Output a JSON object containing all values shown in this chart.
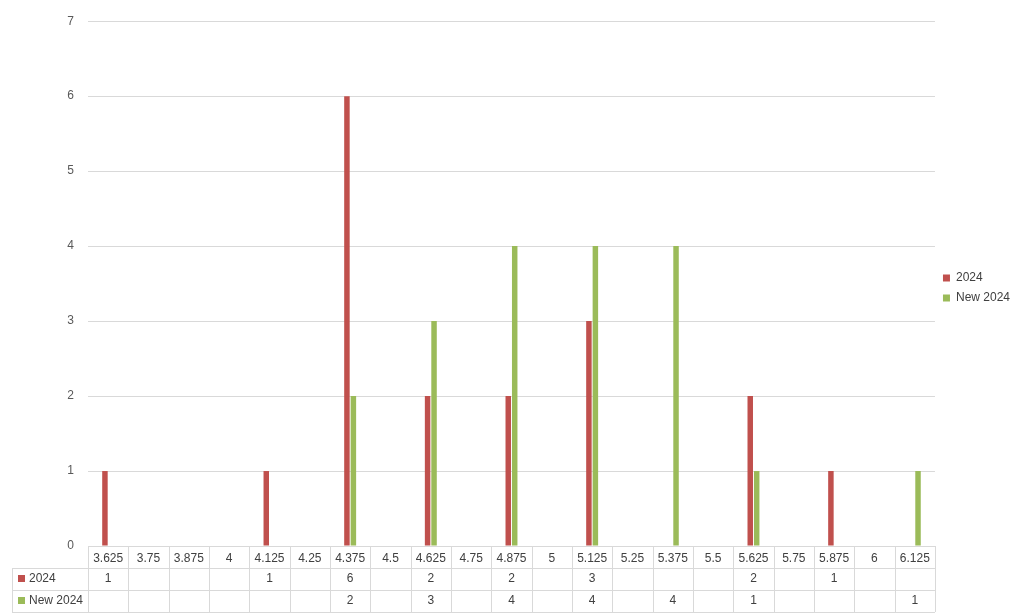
{
  "chart_data": {
    "type": "bar",
    "categories": [
      "3.625",
      "3.75",
      "3.875",
      "4",
      "4.125",
      "4.25",
      "4.375",
      "4.5",
      "4.625",
      "4.75",
      "4.875",
      "5",
      "5.125",
      "5.25",
      "5.375",
      "5.5",
      "5.625",
      "5.75",
      "5.875",
      "6",
      "6.125"
    ],
    "series": [
      {
        "name": "2024",
        "color": "#c0504d",
        "values": [
          1,
          null,
          null,
          null,
          1,
          null,
          6,
          null,
          2,
          null,
          2,
          null,
          3,
          null,
          null,
          null,
          2,
          null,
          1,
          null,
          null
        ],
        "value_labels": [
          "1",
          null,
          null,
          null,
          "1",
          null,
          "6",
          null,
          "2",
          null,
          "2",
          null,
          "3",
          null,
          null,
          null,
          "2",
          null,
          "1",
          null,
          null
        ]
      },
      {
        "name": "New 2024",
        "color": "#9bbb59",
        "values": [
          null,
          null,
          null,
          null,
          null,
          null,
          2,
          null,
          3,
          null,
          4,
          null,
          4,
          null,
          4,
          null,
          1,
          null,
          null,
          null,
          1
        ],
        "value_labels": [
          null,
          null,
          null,
          null,
          null,
          null,
          "2",
          null,
          "3",
          null,
          "4",
          null,
          "4",
          null,
          "4",
          null,
          "1",
          null,
          null,
          null,
          "1"
        ]
      }
    ],
    "ylim": [
      0,
      7
    ],
    "yticks": [
      0,
      1,
      2,
      3,
      4,
      5,
      6,
      7
    ],
    "grid": "y",
    "legend": "right"
  }
}
